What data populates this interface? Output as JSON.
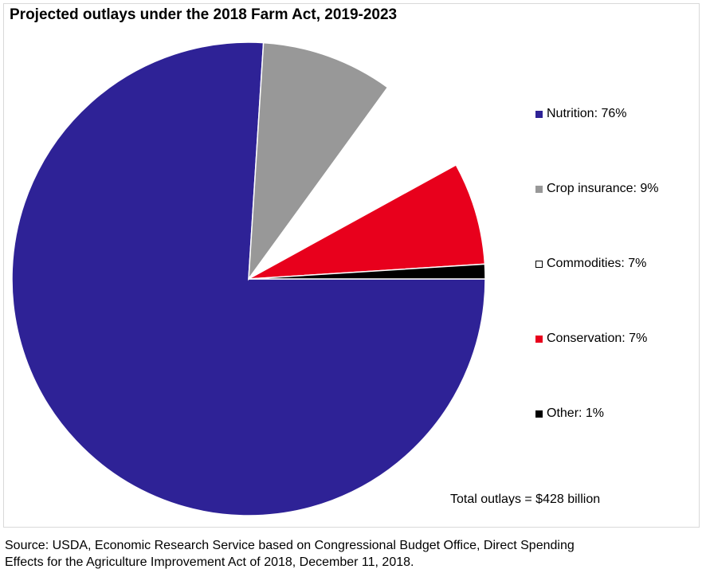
{
  "chart_data": {
    "type": "pie",
    "title": "Projected outlays under the 2018 Farm Act, 2019-2023",
    "slices": [
      {
        "label": "Nutrition: 76%",
        "name": "Nutrition",
        "value": 76,
        "color": "#2e2296"
      },
      {
        "label": "Crop insurance: 9%",
        "name": "Crop insurance",
        "value": 9,
        "color": "#989898"
      },
      {
        "label": "Commodities: 7%",
        "name": "Commodities",
        "value": 7,
        "color": "#ffffff"
      },
      {
        "label": "Conservation: 7%",
        "name": "Conservation",
        "value": 7,
        "color": "#e8001c"
      },
      {
        "label": "Other: 1%",
        "name": "Other",
        "value": 1,
        "color": "#000000"
      }
    ],
    "legend_position": "right",
    "annotation": "Total outlays = $428 billion"
  },
  "footer": {
    "source_line1": "Source: USDA, Economic Research Service based on Congressional Budget Office, Direct Spending",
    "source_line2": "Effects for the Agriculture Improvement Act of 2018, December 11, 2018."
  }
}
